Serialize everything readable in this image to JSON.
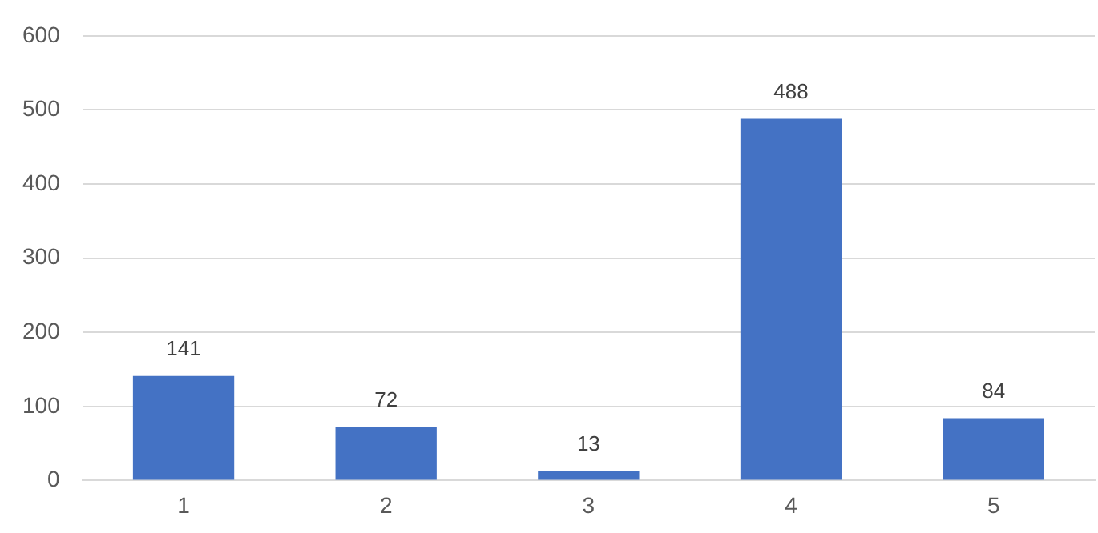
{
  "chart_data": {
    "type": "bar",
    "categories": [
      "1",
      "2",
      "3",
      "4",
      "5"
    ],
    "values": [
      141,
      72,
      13,
      488,
      84
    ],
    "color": "#4472c4",
    "ylim": [
      0,
      600
    ],
    "yticks": [
      0,
      100,
      200,
      300,
      400,
      500,
      600
    ],
    "grid": "y",
    "data_labels": true
  }
}
